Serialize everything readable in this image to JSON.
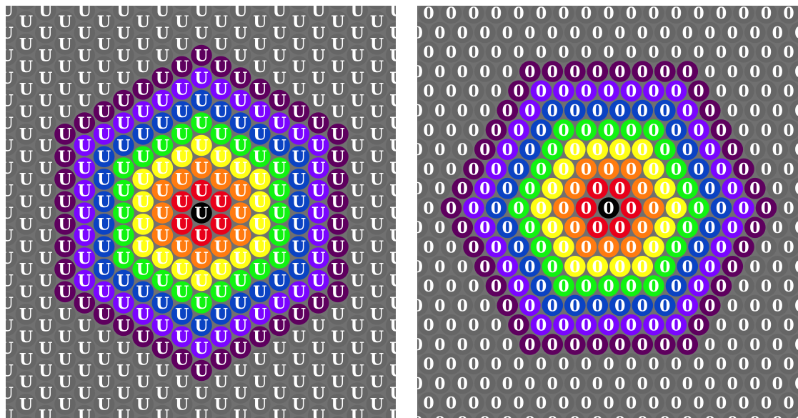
{
  "panels": [
    {
      "name": "left",
      "glyph": "U"
    },
    {
      "name": "right",
      "glyph": "0"
    }
  ],
  "ring_colors": [
    "#000000",
    "#e8001a",
    "#ff7b10",
    "#ffff14",
    "#11f311",
    "#0b43c3",
    "#7a05ff",
    "#5e005e"
  ],
  "background_color": "#707070",
  "disk_color": "#666666"
}
